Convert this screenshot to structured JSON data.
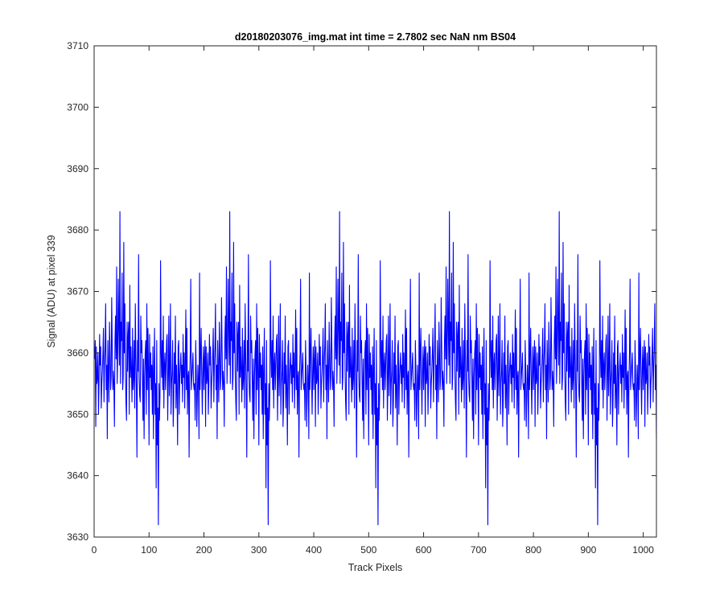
{
  "chart_data": {
    "type": "line",
    "title": "d20180203076_img.mat int time = 2.7802 sec  NaN nm BS04",
    "xlabel": "Track Pixels",
    "ylabel": "Signal (ADU) at pixel 339",
    "xlim": [
      0,
      1024
    ],
    "ylim": [
      3630,
      3710
    ],
    "xticks": [
      0,
      100,
      200,
      300,
      400,
      500,
      600,
      700,
      800,
      900,
      1000
    ],
    "yticks": [
      3630,
      3640,
      3650,
      3660,
      3670,
      3680,
      3690,
      3700,
      3710
    ],
    "grid": false,
    "legend": "none",
    "series": [
      {
        "color": "#0000ff",
        "x_start": 1,
        "x_step": 1,
        "values": [
          3659,
          3662,
          3648,
          3661,
          3655,
          3656,
          3660,
          3650,
          3655,
          3663,
          3658,
          3661,
          3651,
          3655,
          3657,
          3660,
          3664,
          3652,
          3658,
          3661,
          3668,
          3654,
          3658,
          3646,
          3662,
          3657,
          3652,
          3665,
          3660,
          3654,
          3656,
          3669,
          3661,
          3654,
          3657,
          3655,
          3648,
          3662,
          3666,
          3659,
          3674,
          3655,
          3660,
          3672,
          3664,
          3658,
          3683,
          3655,
          3665,
          3662,
          3673,
          3654,
          3656,
          3678,
          3660,
          3668,
          3657,
          3652,
          3649,
          3665,
          3657,
          3663,
          3665,
          3650,
          3671,
          3656,
          3661,
          3657,
          3652,
          3664,
          3654,
          3656,
          3662,
          3651,
          3668,
          3660,
          3654,
          3643,
          3662,
          3657,
          3676,
          3656,
          3653,
          3652,
          3666,
          3660,
          3662,
          3655,
          3649,
          3659,
          3646,
          3656,
          3660,
          3662,
          3650,
          3668,
          3654,
          3664,
          3657,
          3645,
          3663,
          3656,
          3660,
          3654,
          3658,
          3650,
          3661,
          3646,
          3657,
          3664,
          3650,
          3655,
          3638,
          3662,
          3645,
          3651,
          3632,
          3655,
          3649,
          3653,
          3675,
          3660,
          3656,
          3662,
          3654,
          3666,
          3651,
          3658,
          3660,
          3654,
          3658,
          3662,
          3663,
          3649,
          3656,
          3666,
          3653,
          3658,
          3668,
          3650,
          3655,
          3657,
          3662,
          3648,
          3652,
          3660,
          3655,
          3666,
          3651,
          3658,
          3654,
          3645,
          3661,
          3662,
          3650,
          3656,
          3658,
          3660,
          3655,
          3658,
          3652,
          3663,
          3656,
          3660,
          3651,
          3658,
          3667,
          3654,
          3664,
          3650,
          3656,
          3657,
          3643,
          3656,
          3660,
          3672,
          3654,
          3656,
          3658,
          3660,
          3655,
          3654,
          3655,
          3649,
          3662,
          3657,
          3648,
          3653,
          3658,
          3655,
          3646,
          3673,
          3654,
          3660,
          3664,
          3656,
          3650,
          3657,
          3661,
          3654
        ]
      }
    ]
  }
}
